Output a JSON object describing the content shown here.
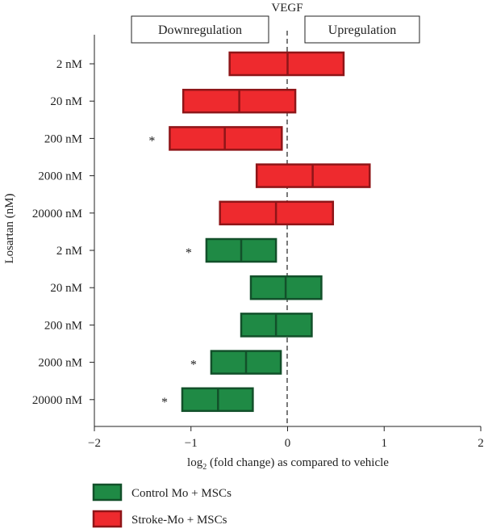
{
  "chart_data": {
    "type": "bar",
    "title": "VEGF",
    "ylabel": "Losartan (nM)",
    "xlabel_prefix": "log",
    "xlabel_subscript": "2",
    "xlabel_suffix": " (fold change) as compared to vehicle",
    "xlim": [
      -2,
      2
    ],
    "xticks": [
      -2,
      -1,
      0,
      1,
      2
    ],
    "xtick_labels": [
      "−2",
      "−1",
      "0",
      "1",
      "2"
    ],
    "regions": {
      "left": "Downregulation",
      "right": "Upregulation"
    },
    "rows": [
      {
        "label": "2 nM",
        "series": "Stroke-Mo + MSCs",
        "min": -0.6,
        "median": 0.0,
        "max": 0.58,
        "significant": false
      },
      {
        "label": "20 nM",
        "series": "Stroke-Mo + MSCs",
        "min": -1.08,
        "median": -0.5,
        "max": 0.08,
        "significant": false
      },
      {
        "label": "200 nM",
        "series": "Stroke-Mo + MSCs",
        "min": -1.22,
        "median": -0.65,
        "max": -0.06,
        "significant": true
      },
      {
        "label": "2000 nM",
        "series": "Stroke-Mo + MSCs",
        "min": -0.32,
        "median": 0.26,
        "max": 0.85,
        "significant": false
      },
      {
        "label": "20000 nM",
        "series": "Stroke-Mo + MSCs",
        "min": -0.7,
        "median": -0.12,
        "max": 0.47,
        "significant": false
      },
      {
        "label": "2 nM",
        "series": "Control Mo + MSCs",
        "min": -0.84,
        "median": -0.48,
        "max": -0.12,
        "significant": true
      },
      {
        "label": "20 nM",
        "series": "Control Mo + MSCs",
        "min": -0.38,
        "median": -0.02,
        "max": 0.35,
        "significant": false
      },
      {
        "label": "200 nM",
        "series": "Control Mo + MSCs",
        "min": -0.48,
        "median": -0.12,
        "max": 0.25,
        "significant": false
      },
      {
        "label": "2000 nM",
        "series": "Control Mo + MSCs",
        "min": -0.79,
        "median": -0.43,
        "max": -0.07,
        "significant": true
      },
      {
        "label": "20000 nM",
        "series": "Control Mo + MSCs",
        "min": -1.09,
        "median": -0.72,
        "max": -0.36,
        "significant": true
      }
    ],
    "significance_marker": "*",
    "legend": [
      {
        "name": "Control Mo + MSCs",
        "fill": "#1f8a45",
        "stroke": "#12502a"
      },
      {
        "name": "Stroke-Mo + MSCs",
        "fill": "#ee2a2e",
        "stroke": "#8f1518"
      }
    ],
    "legend_position": "bottom-left",
    "grid": false
  }
}
